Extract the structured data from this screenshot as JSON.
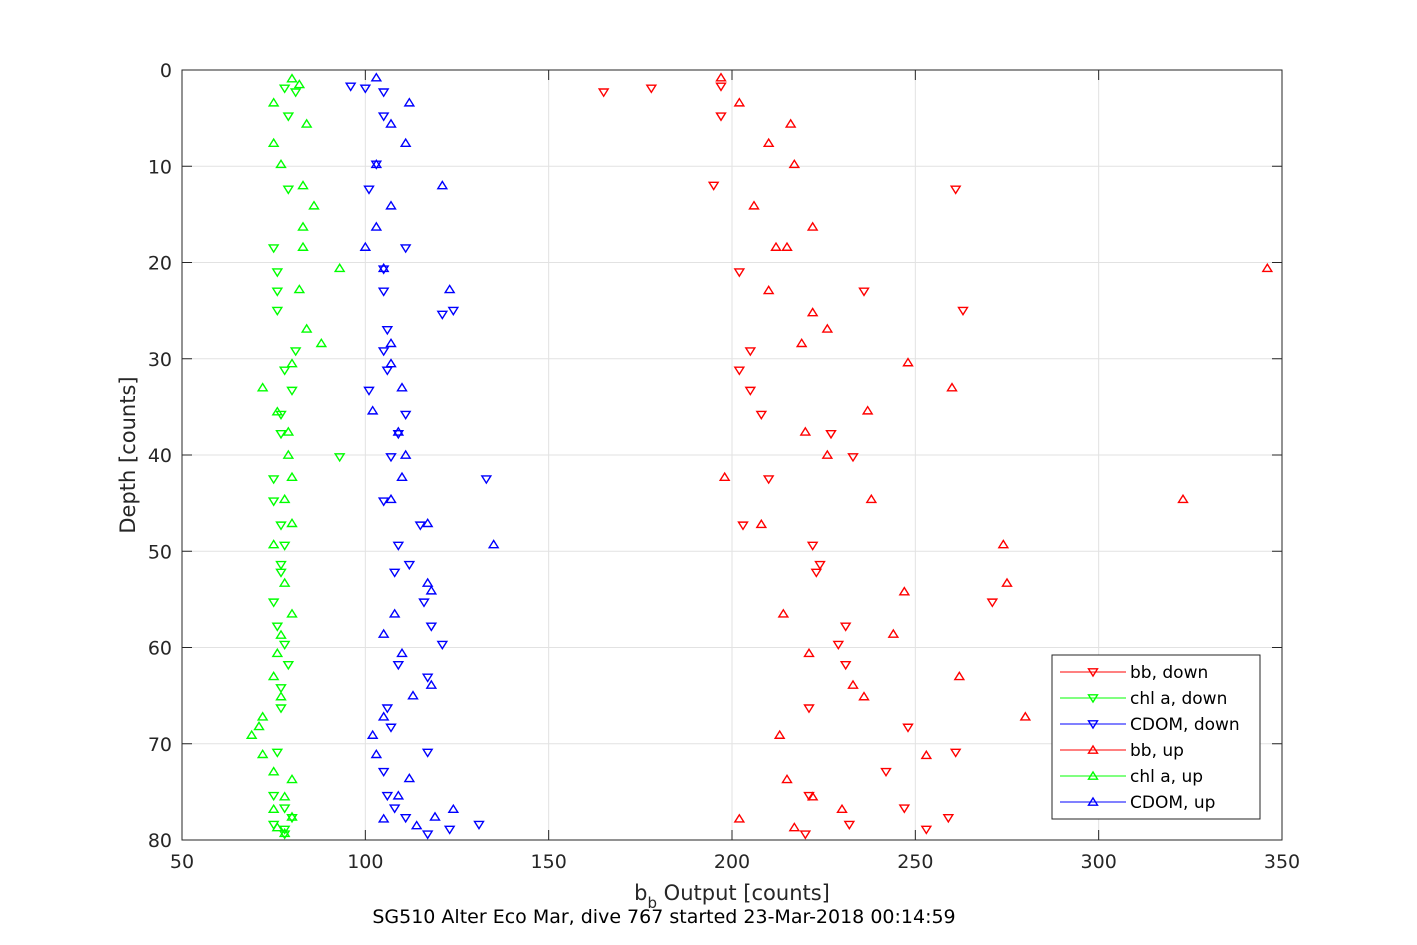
{
  "chart_data": {
    "type": "scatter",
    "xlabel_main": "b",
    "xlabel_sub": "b",
    "xlabel_rest": " Output [counts]",
    "ylabel": "Depth [counts]",
    "caption": "SG510 Alter Eco Mar, dive 767 started 23-Mar-2018 00:14:59",
    "xlim": [
      50,
      350
    ],
    "ylim": [
      0,
      80
    ],
    "y_reversed": true,
    "x_ticks": [
      "50",
      "100",
      "150",
      "200",
      "250",
      "300",
      "350"
    ],
    "y_ticks": [
      "0",
      "10",
      "20",
      "30",
      "40",
      "50",
      "60",
      "70",
      "80"
    ],
    "grid": true,
    "legend_position": "bottom-right",
    "series": [
      {
        "name": "bb, down",
        "marker": "triangle-down",
        "color": "#ff0000",
        "points": [
          [
            197,
            1.7
          ],
          [
            178,
            1.9
          ],
          [
            165,
            2.3
          ],
          [
            197,
            4.8
          ],
          [
            195,
            12
          ],
          [
            261,
            12.4
          ],
          [
            202,
            21
          ],
          [
            236,
            23
          ],
          [
            263,
            25
          ],
          [
            205,
            29.2
          ],
          [
            202,
            31.2
          ],
          [
            205,
            33.3
          ],
          [
            208,
            35.8
          ],
          [
            227,
            37.8
          ],
          [
            233,
            40.2
          ],
          [
            210,
            42.5
          ],
          [
            203,
            47.3
          ],
          [
            222,
            49.4
          ],
          [
            224,
            51.4
          ],
          [
            223,
            52.2
          ],
          [
            271,
            55.3
          ],
          [
            231,
            57.8
          ],
          [
            229,
            59.7
          ],
          [
            231,
            61.8
          ],
          [
            221,
            66.3
          ],
          [
            248,
            68.3
          ],
          [
            261,
            70.9
          ],
          [
            242,
            72.9
          ],
          [
            221,
            75.4
          ],
          [
            247,
            76.7
          ],
          [
            259,
            77.7
          ],
          [
            232,
            78.4
          ],
          [
            253,
            78.9
          ],
          [
            220,
            79.4
          ]
        ]
      },
      {
        "name": "chl a, down",
        "marker": "triangle-down",
        "color": "#00ff00",
        "points": [
          [
            78,
            1.9
          ],
          [
            81,
            2.3
          ],
          [
            79,
            4.8
          ],
          [
            79,
            12.4
          ],
          [
            75,
            18.5
          ],
          [
            76,
            21
          ],
          [
            76,
            23
          ],
          [
            76,
            25
          ],
          [
            81,
            29.2
          ],
          [
            78,
            31.2
          ],
          [
            80,
            33.3
          ],
          [
            77,
            35.8
          ],
          [
            77,
            37.8
          ],
          [
            93,
            40.2
          ],
          [
            75,
            42.5
          ],
          [
            75,
            44.8
          ],
          [
            77,
            47.3
          ],
          [
            78,
            49.4
          ],
          [
            77,
            51.4
          ],
          [
            77,
            52.2
          ],
          [
            75,
            55.3
          ],
          [
            76,
            57.8
          ],
          [
            78,
            59.7
          ],
          [
            79,
            61.8
          ],
          [
            77,
            64.2
          ],
          [
            77,
            66.3
          ],
          [
            76,
            70.9
          ],
          [
            75,
            75.4
          ],
          [
            78,
            76.7
          ],
          [
            80,
            77.7
          ],
          [
            75,
            78.4
          ],
          [
            78,
            78.9
          ],
          [
            78,
            79.4
          ]
        ]
      },
      {
        "name": "CDOM, down",
        "marker": "triangle-down",
        "color": "#0000ff",
        "points": [
          [
            96,
            1.7
          ],
          [
            100,
            1.9
          ],
          [
            105,
            2.3
          ],
          [
            105,
            4.8
          ],
          [
            103,
            9.8
          ],
          [
            101,
            12.4
          ],
          [
            111,
            18.5
          ],
          [
            105,
            20.7
          ],
          [
            105,
            23
          ],
          [
            121,
            25.4
          ],
          [
            124,
            25
          ],
          [
            106,
            27
          ],
          [
            105,
            29.2
          ],
          [
            106,
            31.2
          ],
          [
            101,
            33.3
          ],
          [
            111,
            35.8
          ],
          [
            109,
            37.8
          ],
          [
            107,
            40.2
          ],
          [
            133,
            42.5
          ],
          [
            105,
            44.8
          ],
          [
            115,
            47.3
          ],
          [
            109,
            49.4
          ],
          [
            112,
            51.4
          ],
          [
            108,
            52.2
          ],
          [
            116,
            55.3
          ],
          [
            118,
            57.8
          ],
          [
            121,
            59.7
          ],
          [
            109,
            61.8
          ],
          [
            117,
            63.1
          ],
          [
            106,
            66.3
          ],
          [
            107,
            68.3
          ],
          [
            117,
            70.9
          ],
          [
            105,
            72.9
          ],
          [
            106,
            75.4
          ],
          [
            108,
            76.7
          ],
          [
            111,
            77.7
          ],
          [
            131,
            78.4
          ],
          [
            123,
            78.9
          ],
          [
            117,
            79.4
          ]
        ]
      },
      {
        "name": "bb, up",
        "marker": "triangle-up",
        "color": "#ff0000",
        "points": [
          [
            197,
            0.8
          ],
          [
            202,
            3.4
          ],
          [
            216,
            5.6
          ],
          [
            210,
            7.6
          ],
          [
            217,
            9.8
          ],
          [
            206,
            14.1
          ],
          [
            222,
            16.3
          ],
          [
            212,
            18.4
          ],
          [
            215,
            18.4
          ],
          [
            346,
            20.6
          ],
          [
            210,
            22.9
          ],
          [
            222,
            25.2
          ],
          [
            226,
            26.9
          ],
          [
            219,
            28.4
          ],
          [
            248,
            30.4
          ],
          [
            260,
            33
          ],
          [
            237,
            35.4
          ],
          [
            220,
            37.6
          ],
          [
            226,
            40
          ],
          [
            198,
            42.3
          ],
          [
            238,
            44.6
          ],
          [
            323,
            44.6
          ],
          [
            208,
            47.2
          ],
          [
            274,
            49.3
          ],
          [
            275,
            53.3
          ],
          [
            247,
            54.2
          ],
          [
            214,
            56.5
          ],
          [
            244,
            58.6
          ],
          [
            221,
            60.6
          ],
          [
            262,
            63
          ],
          [
            233,
            63.9
          ],
          [
            236,
            65.1
          ],
          [
            280,
            67.2
          ],
          [
            213,
            69.1
          ],
          [
            253,
            71.2
          ],
          [
            215,
            73.7
          ],
          [
            222,
            75.5
          ],
          [
            230,
            76.8
          ],
          [
            202,
            77.8
          ],
          [
            217,
            78.7
          ]
        ]
      },
      {
        "name": "chl a, up",
        "marker": "triangle-up",
        "color": "#00ff00",
        "points": [
          [
            80,
            0.9
          ],
          [
            82,
            1.5
          ],
          [
            75,
            3.4
          ],
          [
            84,
            5.6
          ],
          [
            75,
            7.6
          ],
          [
            77,
            9.8
          ],
          [
            83,
            12
          ],
          [
            86,
            14.1
          ],
          [
            83,
            16.3
          ],
          [
            83,
            18.4
          ],
          [
            93,
            20.6
          ],
          [
            82,
            22.8
          ],
          [
            84,
            26.9
          ],
          [
            88,
            28.4
          ],
          [
            80,
            30.5
          ],
          [
            72,
            33
          ],
          [
            76,
            35.5
          ],
          [
            79,
            37.6
          ],
          [
            79,
            40
          ],
          [
            80,
            42.3
          ],
          [
            78,
            44.6
          ],
          [
            80,
            47.1
          ],
          [
            75,
            49.3
          ],
          [
            78,
            53.3
          ],
          [
            80,
            56.5
          ],
          [
            77,
            58.7
          ],
          [
            76,
            60.6
          ],
          [
            75,
            63
          ],
          [
            77,
            65.1
          ],
          [
            72,
            67.2
          ],
          [
            71,
            68.2
          ],
          [
            69,
            69.1
          ],
          [
            72,
            71.1
          ],
          [
            75,
            72.9
          ],
          [
            80,
            73.7
          ],
          [
            78,
            75.5
          ],
          [
            75,
            76.8
          ],
          [
            80,
            77.6
          ],
          [
            76,
            78.7
          ],
          [
            78,
            79.3
          ]
        ]
      },
      {
        "name": "CDOM, up",
        "marker": "triangle-up",
        "color": "#0000ff",
        "points": [
          [
            103,
            0.8
          ],
          [
            112,
            3.4
          ],
          [
            107,
            5.6
          ],
          [
            111,
            7.6
          ],
          [
            103,
            9.8
          ],
          [
            121,
            12
          ],
          [
            107,
            14.1
          ],
          [
            103,
            16.3
          ],
          [
            100,
            18.4
          ],
          [
            105,
            20.6
          ],
          [
            123,
            22.8
          ],
          [
            107,
            28.4
          ],
          [
            107,
            30.5
          ],
          [
            110,
            33
          ],
          [
            102,
            35.4
          ],
          [
            109,
            37.6
          ],
          [
            111,
            40
          ],
          [
            110,
            42.3
          ],
          [
            107,
            44.6
          ],
          [
            117,
            47.1
          ],
          [
            135,
            49.3
          ],
          [
            117,
            53.3
          ],
          [
            118,
            54.1
          ],
          [
            108,
            56.5
          ],
          [
            105,
            58.6
          ],
          [
            110,
            60.6
          ],
          [
            118,
            63.9
          ],
          [
            113,
            65
          ],
          [
            105,
            67.2
          ],
          [
            102,
            69.1
          ],
          [
            103,
            71.1
          ],
          [
            112,
            73.6
          ],
          [
            109,
            75.4
          ],
          [
            105,
            77.8
          ],
          [
            114,
            78.5
          ],
          [
            119,
            77.6
          ],
          [
            124,
            76.8
          ]
        ]
      }
    ]
  }
}
